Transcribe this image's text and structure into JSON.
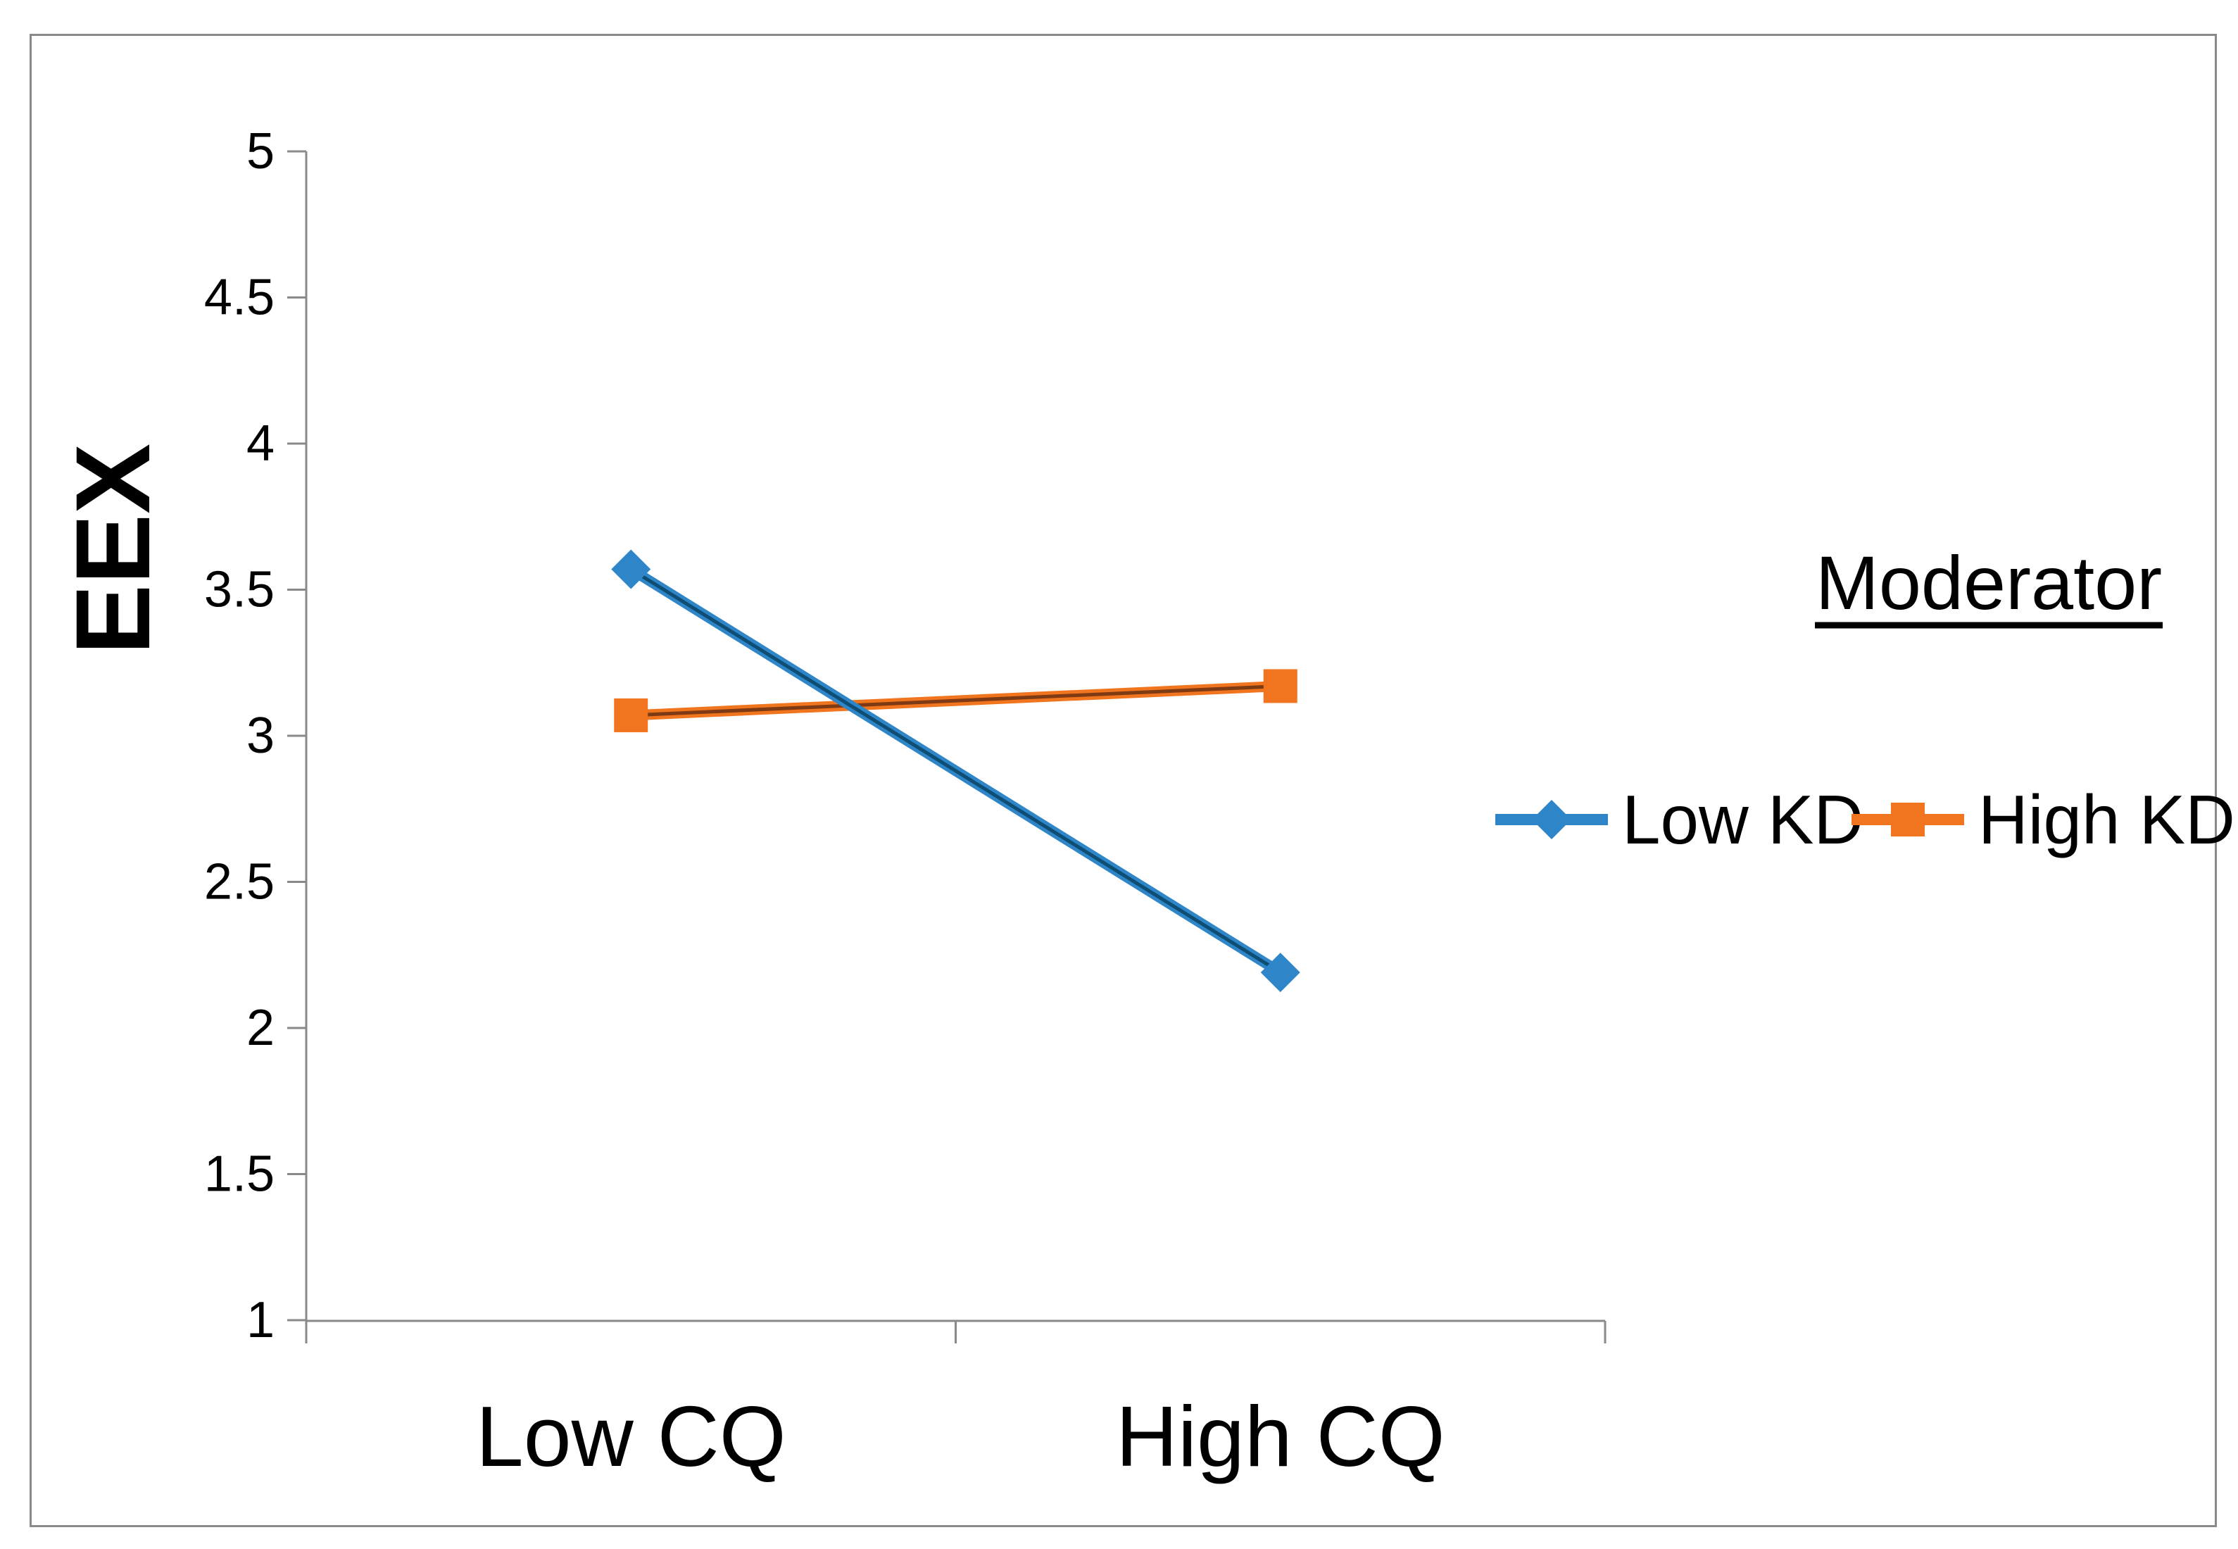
{
  "chart_data": {
    "type": "line",
    "title": "",
    "categories": [
      "Low CQ",
      "High CQ"
    ],
    "series": [
      {
        "name": "Low KD",
        "marker": "diamond",
        "color": "#2E86C8",
        "core_color": "#0E4D74",
        "values": [
          3.57,
          2.19
        ]
      },
      {
        "name": "High KD",
        "marker": "square",
        "color": "#F0751E",
        "core_color": "#7E3A12",
        "values": [
          3.07,
          3.17
        ]
      }
    ],
    "xlabel": "",
    "ylabel": "EEX",
    "ylim": [
      1,
      5
    ],
    "yticks": [
      5,
      4.5,
      4,
      3.5,
      3,
      2.5,
      2,
      1.5,
      1
    ],
    "ytick_labels": [
      "5",
      "4.5",
      "4",
      "3.5",
      "3",
      "2.5",
      "2",
      "1.5",
      "1"
    ],
    "legend_title": "Moderator",
    "legend_entries": [
      "Low KD",
      "High KD"
    ],
    "legend_position": "right-middle",
    "grid": false,
    "axis_color": "#8a8a8a",
    "frame_color": "#8a8a8a",
    "text_color": "#000000",
    "background": "#ffffff"
  }
}
